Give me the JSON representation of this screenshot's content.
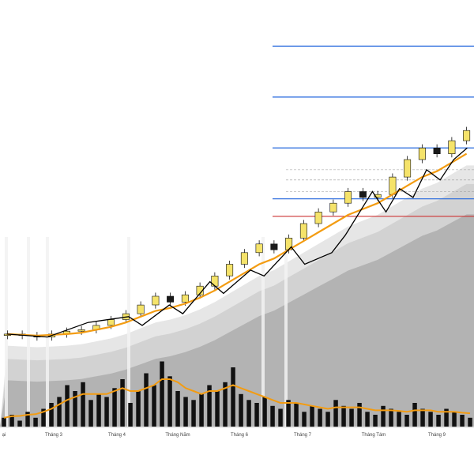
{
  "colors": {
    "background": "#ffffff",
    "candle_up": "#f5e36a",
    "candle_down": "#1a1a1a",
    "moving_average": "#f39c12",
    "zigzag": "#000000",
    "resistance_line": "#2266dd",
    "support_line": "#cc3333",
    "area_fill": "#b3b3b3",
    "volume_bar": "#111111",
    "volume_average": "#f39c12"
  },
  "chart_data": {
    "type": "candlestick",
    "x_axis": {
      "tick_labels": [
        "ại",
        "Tháng 3",
        "Tháng 4",
        "Tháng Năm",
        "Tháng 6",
        "Tháng 7",
        "Tháng Tám",
        "Tháng 9"
      ]
    },
    "grid": false,
    "legend": "none",
    "price_series": {
      "name": "",
      "sample_close": [
        52,
        51,
        50,
        52,
        54,
        55,
        58,
        62,
        66,
        72,
        78,
        74,
        79,
        85,
        92,
        100,
        108,
        114,
        110,
        118,
        128,
        136,
        142,
        150,
        146,
        148,
        160,
        172,
        180,
        176,
        185,
        192
      ]
    },
    "zigzag_points": [
      [
        0,
        52
      ],
      [
        3,
        50
      ],
      [
        6,
        60
      ],
      [
        9,
        64
      ],
      [
        10,
        58
      ],
      [
        12,
        72
      ],
      [
        13,
        66
      ],
      [
        15,
        88
      ],
      [
        16,
        80
      ],
      [
        18,
        96
      ],
      [
        19,
        92
      ],
      [
        21,
        112
      ],
      [
        22,
        100
      ],
      [
        24,
        108
      ],
      [
        25,
        120
      ],
      [
        27,
        150
      ],
      [
        28,
        136
      ],
      [
        29,
        152
      ],
      [
        30,
        146
      ],
      [
        31,
        165
      ],
      [
        32,
        158
      ],
      [
        33,
        172
      ],
      [
        34,
        180
      ]
    ],
    "moving_average": [
      52,
      51.5,
      51,
      51.5,
      52,
      53,
      55,
      57,
      60,
      64,
      68,
      70,
      73,
      77,
      82,
      88,
      94,
      100,
      104,
      110,
      116,
      122,
      128,
      134,
      138,
      142,
      148,
      154,
      160,
      164,
      170,
      176
    ],
    "horizontal_levels": [
      {
        "kind": "resistance",
        "value": 250
      },
      {
        "kind": "resistance",
        "value": 215
      },
      {
        "kind": "resistance",
        "value": 180
      },
      {
        "kind": "resistance",
        "value": 145
      },
      {
        "kind": "support",
        "value": 133
      }
    ],
    "volume": {
      "values": [
        3,
        4,
        2,
        5,
        3,
        6,
        8,
        10,
        14,
        12,
        15,
        9,
        11,
        10,
        13,
        16,
        8,
        12,
        18,
        14,
        22,
        17,
        12,
        10,
        9,
        11,
        14,
        12,
        15,
        20,
        11,
        9,
        8,
        10,
        7,
        6,
        9,
        8,
        5,
        7,
        6,
        5,
        9,
        7,
        6,
        8,
        5,
        4,
        7,
        6,
        5,
        4,
        8,
        6,
        5,
        4,
        6,
        5,
        4,
        3
      ],
      "moving_average": [
        3,
        3.5,
        3.6,
        4,
        4.2,
        5,
        6,
        7.5,
        9,
        10,
        11,
        11,
        11,
        11,
        12,
        13,
        12,
        12,
        13,
        14,
        16,
        16,
        15,
        13,
        12,
        11,
        12,
        12,
        13,
        14,
        13,
        12,
        11,
        10,
        9,
        8,
        8,
        8,
        7.5,
        7,
        6.5,
        6,
        6.5,
        6.5,
        6.5,
        6.5,
        6,
        5.5,
        5.5,
        5.5,
        5.3,
        5,
        5.5,
        5.5,
        5.5,
        5,
        5,
        5,
        4.7,
        4.5
      ]
    }
  }
}
